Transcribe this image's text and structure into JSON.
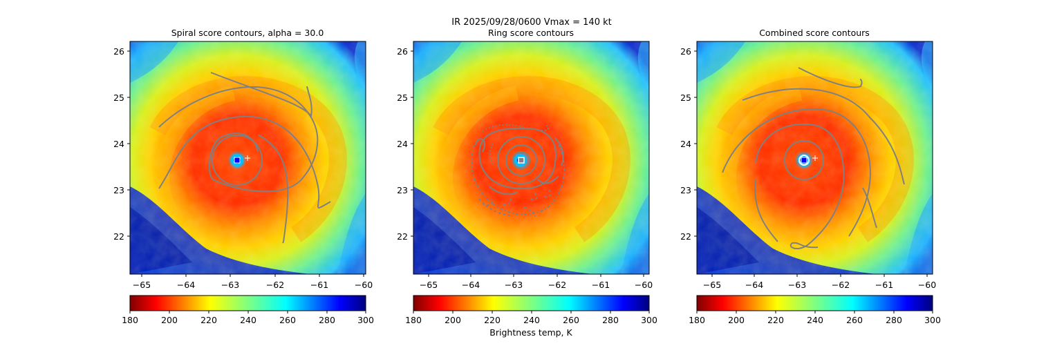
{
  "figure_title": "IR  2025/09/28/0600    Vmax = 140 kt",
  "colorbar_label": "Brightness temp, K",
  "chart_data": [
    {
      "type": "heatmap",
      "title": "Spiral score contours, alpha = 30.0",
      "xlim": [
        -65.3,
        -59.9
      ],
      "ylim": [
        21.2,
        26.2
      ],
      "x_ticks": [
        -65,
        -64,
        -63,
        -62,
        -61,
        -60
      ],
      "x_tick_labels": [
        "−65",
        "−64",
        "−63",
        "−62",
        "−61",
        "−60"
      ],
      "y_ticks": [
        22,
        23,
        24,
        25,
        26
      ],
      "y_tick_labels": [
        "22",
        "23",
        "24",
        "25",
        "26"
      ],
      "colorbar": {
        "vmin": 180,
        "vmax": 300,
        "ticks": [
          180,
          200,
          220,
          240,
          260,
          280,
          300
        ],
        "tick_labels": [
          "180",
          "200",
          "220",
          "240",
          "260",
          "280",
          "300"
        ],
        "label": ""
      },
      "eye_center": [
        -62.8,
        23.65
      ],
      "center_marker": "blue-square",
      "reference_marker": [
        -62.6,
        23.7
      ],
      "contour_color": "#808080"
    },
    {
      "type": "heatmap",
      "title": "Ring score contours",
      "xlim": [
        -65.3,
        -59.9
      ],
      "ylim": [
        21.2,
        26.2
      ],
      "x_ticks": [
        -65,
        -64,
        -63,
        -62,
        -61,
        -60
      ],
      "x_tick_labels": [
        "−65",
        "−64",
        "−63",
        "−62",
        "−61",
        "−60"
      ],
      "y_ticks": [
        22,
        23,
        24,
        25,
        26
      ],
      "y_tick_labels": [
        "22",
        "23",
        "24",
        "25",
        "26"
      ],
      "colorbar": {
        "vmin": 180,
        "vmax": 300,
        "ticks": [
          180,
          200,
          220,
          240,
          260,
          280,
          300
        ],
        "tick_labels": [
          "180",
          "200",
          "220",
          "240",
          "260",
          "280",
          "300"
        ],
        "label": "Brightness temp, K"
      },
      "eye_center": [
        -62.8,
        23.65
      ],
      "center_marker": "white-square",
      "contour_color": "#808080"
    },
    {
      "type": "heatmap",
      "title": "Combined score contours",
      "xlim": [
        -65.3,
        -59.9
      ],
      "ylim": [
        21.2,
        26.2
      ],
      "x_ticks": [
        -65,
        -64,
        -63,
        -62,
        -61,
        -60
      ],
      "x_tick_labels": [
        "−65",
        "−64",
        "−63",
        "−62",
        "−61",
        "−60"
      ],
      "y_ticks": [
        22,
        23,
        24,
        25,
        26
      ],
      "y_tick_labels": [
        "22",
        "23",
        "24",
        "25",
        "26"
      ],
      "colorbar": {
        "vmin": 180,
        "vmax": 300,
        "ticks": [
          180,
          200,
          220,
          240,
          260,
          280,
          300
        ],
        "tick_labels": [
          "180",
          "200",
          "220",
          "240",
          "260",
          "280",
          "300"
        ],
        "label": ""
      },
      "eye_center": [
        -62.8,
        23.65
      ],
      "center_marker": "blue-square",
      "reference_marker": [
        -62.6,
        23.7
      ],
      "contour_color": "#808080"
    }
  ]
}
